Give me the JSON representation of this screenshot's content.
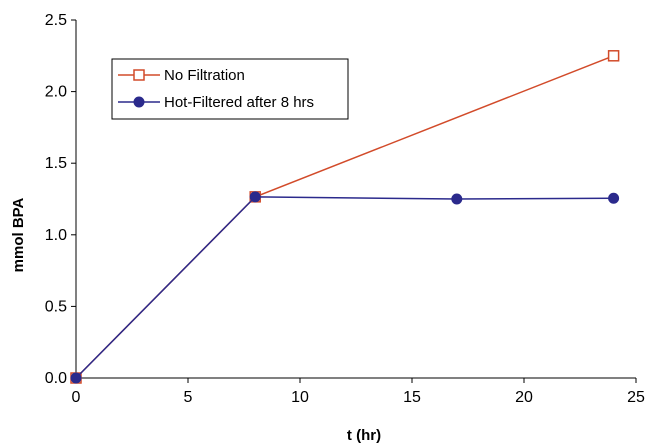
{
  "chart_data": {
    "type": "line",
    "title": "",
    "xlabel": "t (hr)",
    "ylabel": "mmol BPA",
    "xlim": [
      0,
      25
    ],
    "ylim": [
      0,
      2.5
    ],
    "x_ticks": [
      0,
      5,
      10,
      15,
      20,
      25
    ],
    "y_ticks": [
      "0.0",
      "0.5",
      "1.0",
      "1.5",
      "2.0",
      "2.5"
    ],
    "grid": false,
    "legend_position": "top-left",
    "series": [
      {
        "name": "No Filtration",
        "color": "#d24b2a",
        "marker": "open-square",
        "points": [
          [
            0,
            0.0
          ],
          [
            8,
            1.265
          ],
          [
            24,
            2.25
          ]
        ]
      },
      {
        "name": "Hot-Filtered after 8 hrs",
        "color": "#2b2a8c",
        "marker": "filled-circle",
        "points": [
          [
            0,
            0.0
          ],
          [
            8,
            1.265
          ],
          [
            17,
            1.25
          ],
          [
            24,
            1.255
          ]
        ]
      }
    ]
  }
}
